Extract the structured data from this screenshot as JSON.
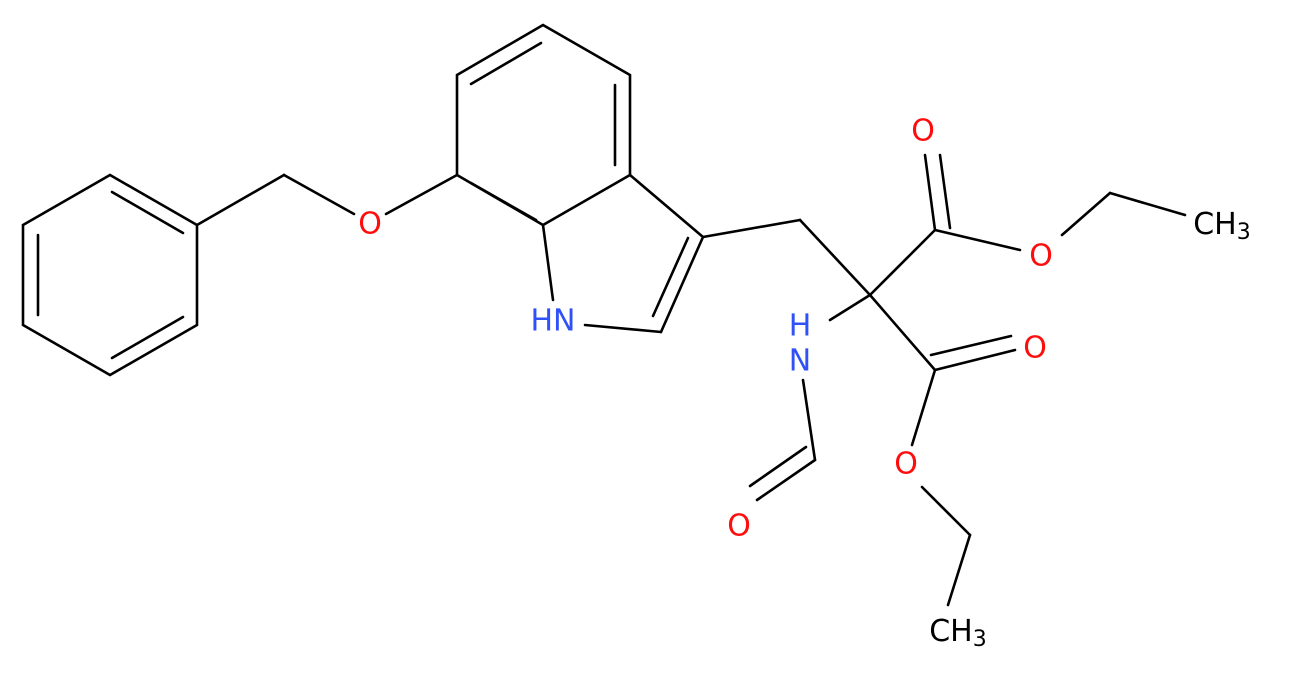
{
  "atoms": [
    {
      "label": "O"
    },
    {
      "label": "HN"
    },
    {
      "label": "O"
    },
    {
      "label": "O"
    },
    {
      "label": "CH",
      "sub": "3"
    },
    {
      "label": "O"
    },
    {
      "label": "O"
    },
    {
      "label": "CH",
      "sub": "3"
    },
    {
      "label": "N",
      "h": "H"
    },
    {
      "label": "O"
    }
  ]
}
